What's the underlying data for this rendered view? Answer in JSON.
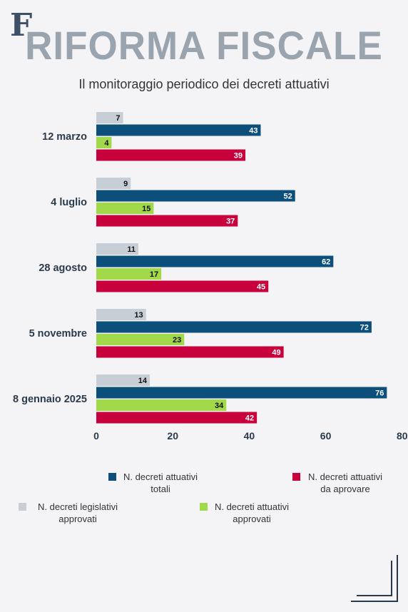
{
  "logo_text": "F",
  "title": "RIFORMA FISCALE",
  "subtitle": "Il monitoraggio periodico dei decreti attuativi",
  "chart_data": {
    "type": "bar",
    "orientation": "horizontal",
    "categories": [
      "12 marzo",
      "4 luglio",
      "28 agosto",
      "5 novembre",
      "8 gennaio 2025"
    ],
    "series": [
      {
        "name": "N. decreti legislativi approvati",
        "color": "#c8ced5",
        "values": [
          7,
          9,
          11,
          13,
          14
        ]
      },
      {
        "name": "N. decreti attuativi totali",
        "color": "#0b4f7a",
        "values": [
          43,
          52,
          62,
          72,
          76
        ]
      },
      {
        "name": "N. decreti attuativi approvati",
        "color": "#a2d94a",
        "values": [
          4,
          15,
          17,
          23,
          34
        ]
      },
      {
        "name": "N. decreti attuativi da aprovare",
        "color": "#c8003c",
        "values": [
          39,
          37,
          45,
          49,
          42
        ]
      }
    ],
    "xlim": [
      0,
      80
    ],
    "xticks": [
      0,
      20,
      40,
      60,
      80
    ],
    "grid": false
  },
  "legend": [
    {
      "swatch": "#0b4f7a",
      "line1": "N. decreti attuativi",
      "line2": "totali"
    },
    {
      "swatch": "#c8003c",
      "line1": "N. decreti attuativi",
      "line2": "da aprovare"
    },
    {
      "swatch": "#c8ced5",
      "line1": "N. decreti legislativi",
      "line2": "approvati"
    },
    {
      "swatch": "#a2d94a",
      "line1": "N. decreti attuativi",
      "line2": "approvati"
    }
  ]
}
